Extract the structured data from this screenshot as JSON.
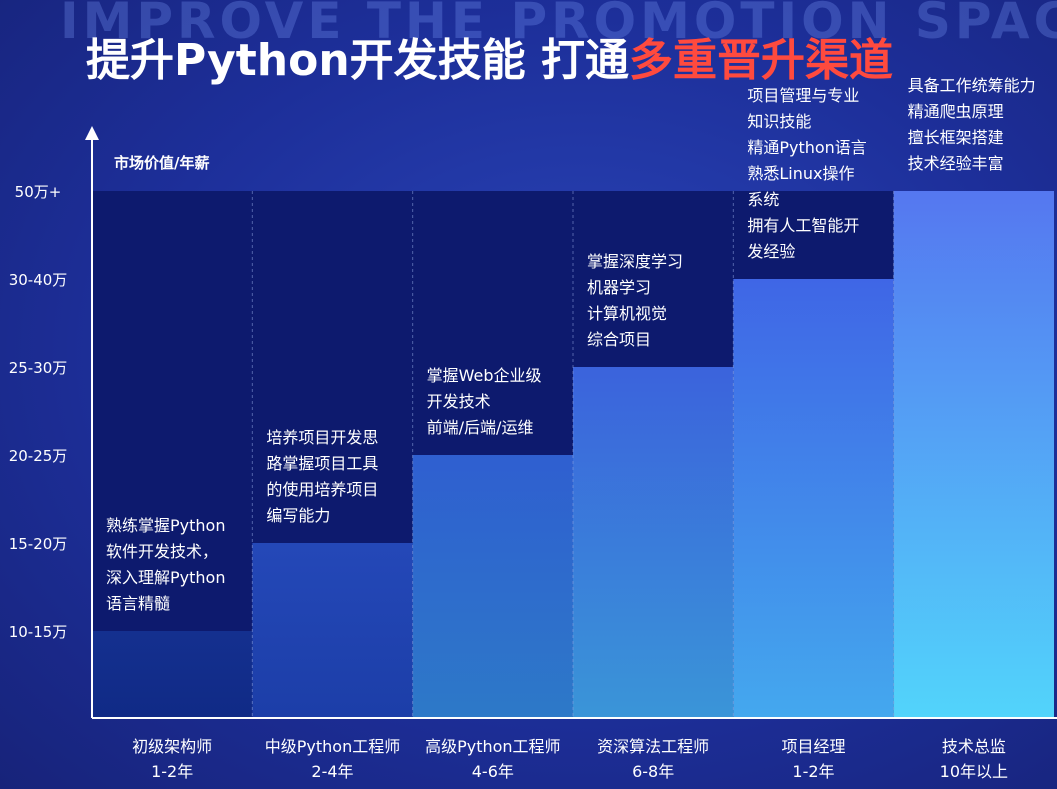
{
  "header": {
    "bg_word": "IMPROVE THE PROMOTION SPACE",
    "title_main": "提升Python开发技能 打通",
    "title_highlight": "多重晋升渠道"
  },
  "colors": {
    "highlight": "#ff4a3e",
    "top_band": "#0d1a6e"
  },
  "chart_data": {
    "type": "bar",
    "ylabel": "市场价值/年薪",
    "y_ticks": [
      "10-15万",
      "15-20万",
      "20-25万",
      "25-30万",
      "30-40万",
      "50万+"
    ],
    "y_levels": [
      1,
      2,
      3,
      4,
      5,
      6
    ],
    "categories": [
      [
        "初级架构师",
        "1-2年"
      ],
      [
        "中级Python工程师",
        "2-4年"
      ],
      [
        "高级Python工程师",
        "4-6年"
      ],
      [
        "资深算法工程师",
        "6-8年"
      ],
      [
        "项目经理",
        "1-2年"
      ],
      [
        "技术总监",
        "10年以上"
      ]
    ],
    "values": [
      1,
      2,
      3,
      4,
      5,
      6
    ],
    "bar_texts": [
      [
        "熟练掌握Python",
        "软件开发技术，",
        "深入理解Python",
        "语言精髓"
      ],
      [
        "培养项目开发思",
        "路掌握项目工具",
        "的使用培养项目",
        "编写能力"
      ],
      [
        "掌握Web企业级",
        "开发技术",
        "前端/后端/运维"
      ],
      [
        "掌握深度学习",
        "机器学习",
        "计算机视觉",
        "综合项目"
      ],
      [
        "项目管理与专业",
        "知识技能",
        "精通Python语言",
        "熟悉Linux操作",
        "系统",
        "拥有人工智能开",
        "发经验"
      ],
      [
        "具备工作统筹能力",
        "精通爬虫原理",
        "擅长框架搭建",
        "技术经验丰富"
      ]
    ],
    "bar_colors": [
      [
        "#14308f",
        "#102a86"
      ],
      [
        "#2448b8",
        "#1c3ea8"
      ],
      [
        "#2f5fd0",
        "#2d79c8"
      ],
      [
        "#3b63dc",
        "#3a95d8"
      ],
      [
        "#3f66e6",
        "#44a8ee"
      ],
      [
        "#5577f0",
        "#52d4fb"
      ]
    ]
  }
}
